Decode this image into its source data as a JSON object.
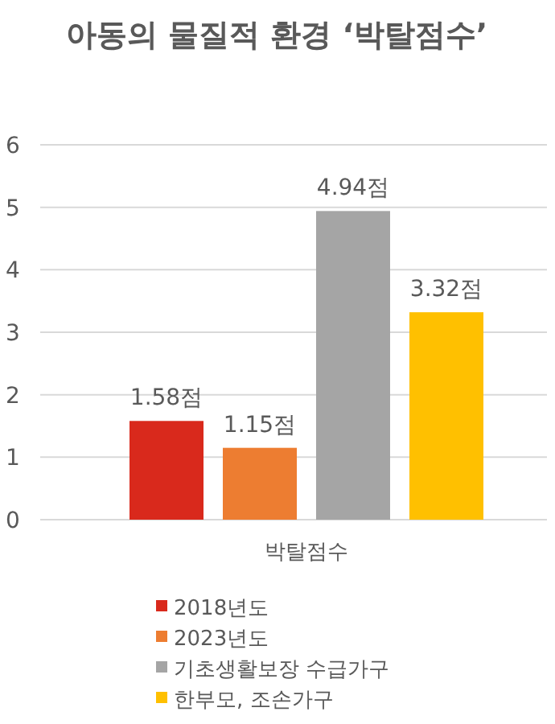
{
  "chart_data": {
    "type": "bar",
    "title": "아동의 물질적 환경 ‘박탈점수’",
    "categories": [
      "박탈점수"
    ],
    "series": [
      {
        "name": "2018년도",
        "color": "#d9291c",
        "values": [
          1.58
        ],
        "value_labels": [
          "1.58점"
        ]
      },
      {
        "name": "2023년도",
        "color": "#ed7d31",
        "values": [
          1.15
        ],
        "value_labels": [
          "1.15점"
        ]
      },
      {
        "name": "기초생활보장 수급가구",
        "color": "#a5a5a5",
        "values": [
          4.94
        ],
        "value_labels": [
          "4.94점"
        ]
      },
      {
        "name": "한부모, 조손가구",
        "color": "#ffc000",
        "values": [
          3.32
        ],
        "value_labels": [
          "3.32점"
        ]
      }
    ],
    "ylim": [
      0,
      6
    ],
    "yticks": [
      0,
      1,
      2,
      3,
      4,
      5,
      6
    ],
    "grid": "y",
    "legend": "bottom"
  }
}
